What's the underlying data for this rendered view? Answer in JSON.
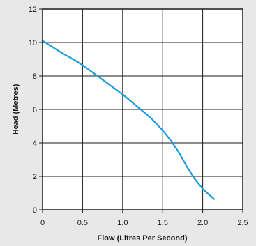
{
  "chart_data": {
    "type": "line",
    "xlabel": "Flow (Litres Per Second)",
    "ylabel": "Head (Metres)",
    "xlim": [
      0,
      2.5
    ],
    "ylim": [
      0,
      12
    ],
    "xticks": [
      "0",
      "0.5",
      "1.0",
      "1.5",
      "2.0",
      "2.5"
    ],
    "yticks": [
      "0",
      "2",
      "4",
      "6",
      "8",
      "10",
      "12"
    ],
    "grid": true,
    "series": [
      {
        "color": "#1a9ad6",
        "x": [
          0.0,
          0.1,
          0.25,
          0.4,
          0.5,
          0.7,
          0.9,
          1.0,
          1.2,
          1.35,
          1.5,
          1.6,
          1.7,
          1.8,
          1.9,
          2.0,
          2.14
        ],
        "y": [
          10.1,
          9.8,
          9.35,
          8.95,
          8.65,
          7.95,
          7.25,
          6.9,
          6.1,
          5.5,
          4.75,
          4.15,
          3.45,
          2.6,
          1.85,
          1.25,
          0.65
        ]
      }
    ]
  }
}
